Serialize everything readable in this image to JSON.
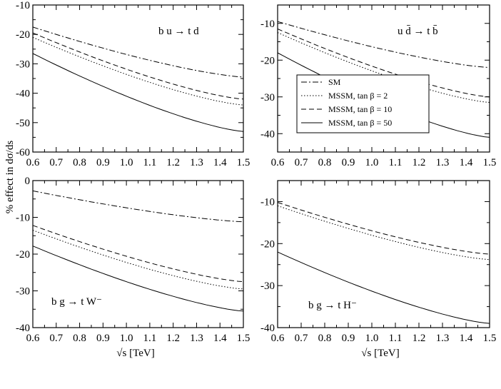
{
  "figure": {
    "ylabel": "% effect in dσ/ds",
    "xlabel_left": "√s   [TeV]",
    "xlabel_right": "√s   [TeV]"
  },
  "legend": {
    "entries": [
      {
        "label": "SM",
        "style": "dashdot"
      },
      {
        "label": "MSSM, tan β = 2",
        "style": "dotted"
      },
      {
        "label": "MSSM, tan β = 10",
        "style": "dashed"
      },
      {
        "label": "MSSM, tan β = 50",
        "style": "solid"
      }
    ]
  },
  "chart_data": [
    {
      "type": "line",
      "panel": "top-left",
      "annotation": "b u → t d",
      "x": [
        0.6,
        1.5
      ],
      "xlim": [
        0.6,
        1.5
      ],
      "ylim": [
        -60,
        -10
      ],
      "xticks": [
        0.6,
        0.7,
        0.8,
        0.9,
        1.0,
        1.1,
        1.2,
        1.3,
        1.4,
        1.5
      ],
      "yticks": [
        -10,
        -20,
        -30,
        -40,
        -50,
        -60
      ],
      "series": [
        {
          "style": "dashdot",
          "values": [
            -17.5,
            -34.5
          ]
        },
        {
          "style": "dashed",
          "values": [
            -19.5,
            -42.0
          ]
        },
        {
          "style": "dotted",
          "values": [
            -21.0,
            -44.0
          ]
        },
        {
          "style": "solid",
          "values": [
            -26.5,
            -53.0
          ]
        }
      ]
    },
    {
      "type": "line",
      "panel": "top-right",
      "annotation": "u d̄ → t b̄",
      "x": [
        0.6,
        1.5
      ],
      "xlim": [
        0.6,
        1.5
      ],
      "ylim": [
        -45,
        -5
      ],
      "xticks": [
        0.6,
        0.7,
        0.8,
        0.9,
        1.0,
        1.1,
        1.2,
        1.3,
        1.4,
        1.5
      ],
      "yticks": [
        -10,
        -20,
        -30,
        -40
      ],
      "series": [
        {
          "style": "dashdot",
          "values": [
            -9.5,
            -22.0
          ]
        },
        {
          "style": "dashed",
          "values": [
            -11.5,
            -30.0
          ]
        },
        {
          "style": "dotted",
          "values": [
            -12.5,
            -31.5
          ]
        },
        {
          "style": "solid",
          "values": [
            -18.0,
            -41.0
          ]
        }
      ]
    },
    {
      "type": "line",
      "panel": "bottom-left",
      "annotation": "b g → t W⁻",
      "x": [
        0.6,
        1.5
      ],
      "xlim": [
        0.6,
        1.5
      ],
      "ylim": [
        -40,
        0
      ],
      "xticks": [
        0.6,
        0.7,
        0.8,
        0.9,
        1.0,
        1.1,
        1.2,
        1.3,
        1.4,
        1.5
      ],
      "yticks": [
        0,
        -10,
        -20,
        -30,
        -40
      ],
      "series": [
        {
          "style": "dashdot",
          "values": [
            -2.8,
            -11.2
          ]
        },
        {
          "style": "dashed",
          "values": [
            -12.2,
            -27.5
          ]
        },
        {
          "style": "dotted",
          "values": [
            -13.5,
            -29.5
          ]
        },
        {
          "style": "solid",
          "values": [
            -17.8,
            -35.5
          ]
        }
      ]
    },
    {
      "type": "line",
      "panel": "bottom-right",
      "annotation": "b g → t H⁻",
      "x": [
        0.6,
        1.5
      ],
      "xlim": [
        0.6,
        1.5
      ],
      "ylim": [
        -40,
        -5
      ],
      "xticks": [
        0.6,
        0.7,
        0.8,
        0.9,
        1.0,
        1.1,
        1.2,
        1.3,
        1.4,
        1.5
      ],
      "yticks": [
        -10,
        -20,
        -30,
        -40
      ],
      "series": [
        {
          "style": "dashed",
          "values": [
            -10.2,
            -22.5
          ]
        },
        {
          "style": "dotted",
          "values": [
            -11.0,
            -23.8
          ]
        },
        {
          "style": "solid",
          "values": [
            -22.0,
            -39.0
          ]
        }
      ]
    }
  ]
}
